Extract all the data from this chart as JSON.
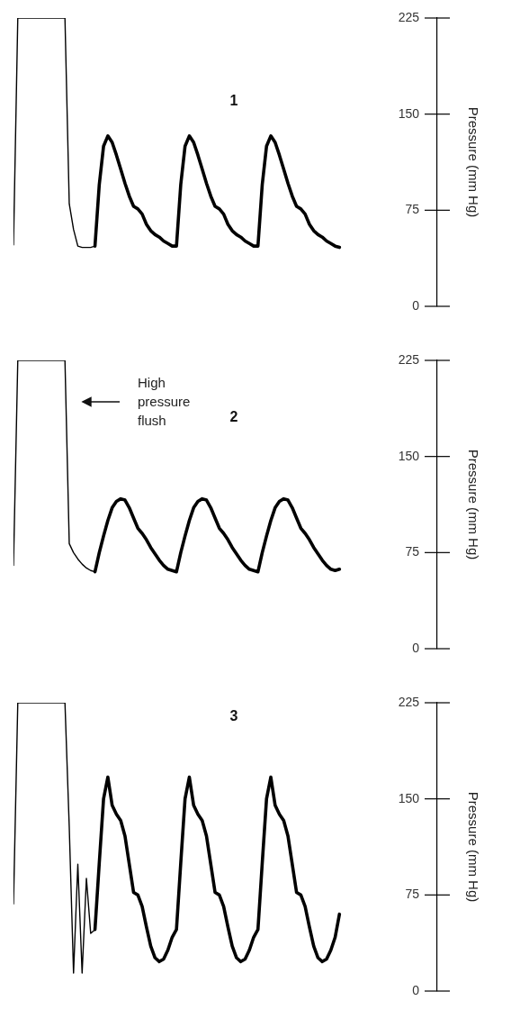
{
  "chart_data": [
    {
      "type": "line",
      "title": "1",
      "ylabel": "Pressure (mm Hg)",
      "ylim": [
        0,
        225
      ],
      "yticks": [
        0,
        75,
        150,
        225
      ],
      "categories": [
        null,
        null,
        null,
        null,
        null,
        null,
        null,
        null,
        null,
        null,
        null,
        null,
        null,
        null,
        null,
        null,
        null,
        null,
        null,
        null,
        null,
        null,
        null,
        null,
        null,
        null,
        null,
        null,
        null,
        null,
        null,
        null,
        null,
        null,
        null,
        null,
        null,
        null,
        null,
        null,
        null,
        null,
        null,
        null,
        null,
        null,
        null,
        null,
        null,
        null,
        null,
        null,
        null,
        null,
        null,
        null,
        null,
        null,
        null,
        null,
        null,
        null,
        null,
        null,
        null,
        null,
        null,
        null,
        null,
        null,
        null,
        null,
        null,
        null,
        null,
        null,
        null
      ],
      "series": [
        {
          "color": "#000000",
          "values": [
            48,
            225,
            225,
            225,
            225,
            225,
            225,
            225,
            225,
            225,
            225,
            225,
            225,
            80,
            60,
            47,
            46,
            46,
            46,
            47,
            null,
            null,
            null,
            null,
            null,
            null,
            null,
            null,
            null,
            null,
            null,
            null,
            null,
            null,
            null,
            null,
            null,
            null,
            null,
            null,
            null,
            null,
            null,
            null,
            null,
            null,
            null,
            null,
            null,
            null,
            null,
            null,
            null,
            null,
            null,
            null,
            null,
            null,
            null,
            null,
            null,
            null,
            null,
            null,
            null,
            null,
            null,
            null,
            null,
            null,
            null,
            null,
            null,
            null,
            null,
            null,
            null
          ]
        },
        {
          "color": "#000000",
          "values": [
            null,
            null,
            null,
            null,
            null,
            null,
            null,
            null,
            null,
            null,
            null,
            null,
            null,
            null,
            null,
            null,
            null,
            null,
            null,
            47,
            95,
            125,
            133,
            128,
            118,
            107,
            96,
            86,
            78,
            76,
            72,
            64,
            59,
            56,
            54,
            51,
            49,
            47,
            47,
            95,
            125,
            133,
            128,
            118,
            107,
            96,
            86,
            78,
            76,
            72,
            64,
            59,
            56,
            54,
            51,
            49,
            47,
            47,
            95,
            125,
            133,
            128,
            118,
            107,
            96,
            86,
            78,
            76,
            72,
            64,
            59,
            56,
            54,
            51,
            49,
            47,
            46
          ]
        }
      ]
    },
    {
      "type": "line",
      "title": "2",
      "ylabel": "Pressure (mm Hg)",
      "ylim": [
        0,
        225
      ],
      "yticks": [
        0,
        75,
        150,
        225
      ],
      "annotations": [
        "High pressure flush"
      ],
      "categories": [
        null,
        null,
        null,
        null,
        null,
        null,
        null,
        null,
        null,
        null,
        null,
        null,
        null,
        null,
        null,
        null,
        null,
        null,
        null,
        null,
        null,
        null,
        null,
        null,
        null,
        null,
        null,
        null,
        null,
        null,
        null,
        null,
        null,
        null,
        null,
        null,
        null,
        null,
        null,
        null,
        null,
        null,
        null,
        null,
        null,
        null,
        null,
        null,
        null,
        null,
        null,
        null,
        null,
        null,
        null,
        null,
        null,
        null,
        null,
        null,
        null,
        null,
        null,
        null,
        null,
        null,
        null,
        null,
        null,
        null,
        null,
        null,
        null,
        null,
        null,
        null,
        null
      ],
      "series": [
        {
          "color": "#000000",
          "values": [
            65,
            225,
            225,
            225,
            225,
            225,
            225,
            225,
            225,
            225,
            225,
            225,
            225,
            82,
            75,
            70,
            66,
            63,
            61,
            60,
            null,
            null,
            null,
            null,
            null,
            null,
            null,
            null,
            null,
            null,
            null,
            null,
            null,
            null,
            null,
            null,
            null,
            null,
            null,
            null,
            null,
            null,
            null,
            null,
            null,
            null,
            null,
            null,
            null,
            null,
            null,
            null,
            null,
            null,
            null,
            null,
            null,
            null,
            null,
            null,
            null,
            null,
            null,
            null,
            null,
            null,
            null,
            null,
            null,
            null,
            null,
            null,
            null,
            null,
            null,
            null,
            null
          ]
        },
        {
          "color": "#000000",
          "values": [
            null,
            null,
            null,
            null,
            null,
            null,
            null,
            null,
            null,
            null,
            null,
            null,
            null,
            null,
            null,
            null,
            null,
            null,
            null,
            60,
            75,
            88,
            100,
            110,
            115,
            117,
            116,
            110,
            102,
            94,
            90,
            85,
            79,
            74,
            69,
            65,
            62,
            61,
            60,
            75,
            88,
            100,
            110,
            115,
            117,
            116,
            110,
            102,
            94,
            90,
            85,
            79,
            74,
            69,
            65,
            62,
            61,
            60,
            75,
            88,
            100,
            110,
            115,
            117,
            116,
            110,
            102,
            94,
            90,
            85,
            79,
            74,
            69,
            65,
            62,
            61,
            62
          ]
        }
      ]
    },
    {
      "type": "line",
      "title": "3",
      "ylabel": "Pressure (mm Hg)",
      "ylim": [
        0,
        225
      ],
      "yticks": [
        0,
        75,
        150,
        225
      ],
      "categories": [
        null,
        null,
        null,
        null,
        null,
        null,
        null,
        null,
        null,
        null,
        null,
        null,
        null,
        null,
        null,
        null,
        null,
        null,
        null,
        null,
        null,
        null,
        null,
        null,
        null,
        null,
        null,
        null,
        null,
        null,
        null,
        null,
        null,
        null,
        null,
        null,
        null,
        null,
        null,
        null,
        null,
        null,
        null,
        null,
        null,
        null,
        null,
        null,
        null,
        null,
        null,
        null,
        null,
        null,
        null,
        null,
        null,
        null,
        null,
        null,
        null,
        null,
        null,
        null,
        null,
        null,
        null,
        null,
        null,
        null,
        null,
        null,
        null,
        null,
        null,
        null,
        null
      ],
      "series": [
        {
          "color": "#000000",
          "values": [
            68,
            225,
            225,
            225,
            225,
            225,
            225,
            225,
            225,
            225,
            225,
            225,
            225,
            128,
            14,
            99,
            14,
            88,
            45,
            48,
            null,
            null,
            null,
            null,
            null,
            null,
            null,
            null,
            null,
            null,
            null,
            null,
            null,
            null,
            null,
            null,
            null,
            null,
            null,
            null,
            null,
            null,
            null,
            null,
            null,
            null,
            null,
            null,
            null,
            null,
            null,
            null,
            null,
            null,
            null,
            null,
            null,
            null,
            null,
            null,
            null,
            null,
            null,
            null,
            null,
            null,
            null,
            null,
            null,
            null,
            null,
            null,
            null,
            null,
            null,
            null,
            null
          ]
        },
        {
          "color": "#000000",
          "values": [
            null,
            null,
            null,
            null,
            null,
            null,
            null,
            null,
            null,
            null,
            null,
            null,
            null,
            null,
            null,
            null,
            null,
            null,
            null,
            48,
            100,
            150,
            167,
            145,
            138,
            133,
            121,
            99,
            77,
            75,
            66,
            50,
            35,
            26,
            23,
            25,
            32,
            42,
            48,
            100,
            150,
            167,
            145,
            138,
            133,
            121,
            99,
            77,
            75,
            66,
            50,
            35,
            26,
            23,
            25,
            32,
            42,
            48,
            100,
            150,
            167,
            145,
            138,
            133,
            121,
            99,
            77,
            75,
            66,
            50,
            35,
            26,
            23,
            25,
            32,
            42,
            60
          ]
        }
      ]
    }
  ]
}
